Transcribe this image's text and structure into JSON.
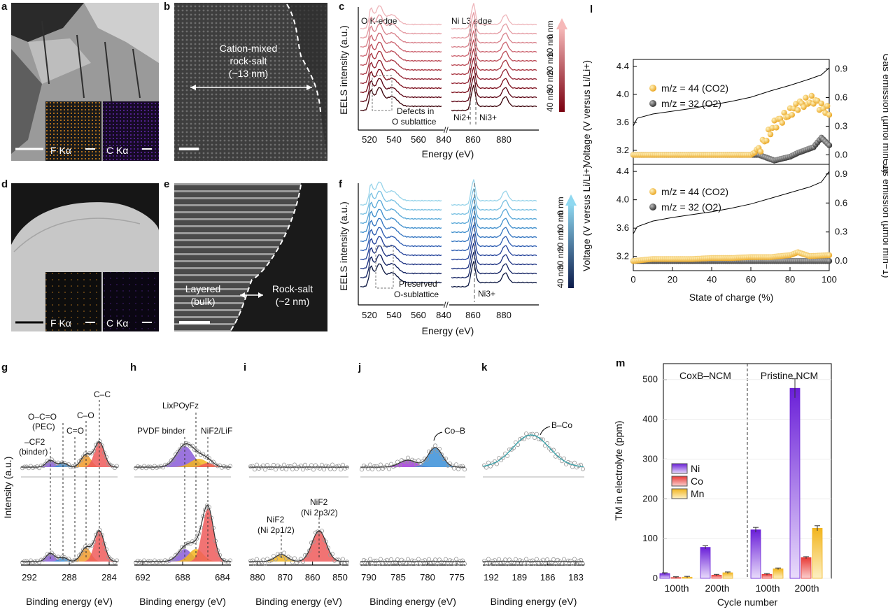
{
  "panels": {
    "a": {
      "label": "a",
      "maps": [
        "F Kα",
        "C Kα"
      ]
    },
    "b": {
      "label": "b",
      "annotation": [
        "Cation-mixed",
        "rock-salt",
        "(~13 nm)"
      ]
    },
    "c": {
      "label": "c",
      "edges": [
        "O K-edge",
        "Ni L3 edge"
      ],
      "depth_labels": [
        "40 nm",
        "30 nm",
        "20 nm",
        "10 nm",
        "0 nm"
      ],
      "notes": [
        "Defects in",
        "O sublattice",
        "Ni2+",
        "Ni3+"
      ]
    },
    "d": {
      "label": "d",
      "maps": [
        "F Kα",
        "C Kα"
      ]
    },
    "e": {
      "label": "e",
      "annotation_left": [
        "Layered",
        "(bulk)"
      ],
      "annotation_right": [
        "Rock-salt",
        "(~2 nm)"
      ]
    },
    "f": {
      "label": "f",
      "depth_labels": [
        "40 nm",
        "30 nm",
        "20 nm",
        "10 nm",
        "0 nm"
      ],
      "notes": [
        "Preserved",
        "O-sublattice",
        "Ni3+"
      ]
    },
    "g": {
      "label": "g",
      "peaks": [
        "C–C",
        "C–O",
        "C=O",
        "O–C=O",
        "(PEC)",
        "–CF2",
        "(binder)"
      ]
    },
    "h": {
      "label": "h",
      "peaks": [
        "PVDF binder",
        "LixPOyFz",
        "NiF2/LiF"
      ]
    },
    "i": {
      "label": "i",
      "peaks": [
        "NiF2",
        "(Ni 2p1/2)",
        "NiF2",
        "(Ni 2p3/2)"
      ]
    },
    "j": {
      "label": "j",
      "peaks": [
        "Co–B"
      ]
    },
    "k": {
      "label": "k",
      "peaks": [
        "B–Co"
      ]
    },
    "l": {
      "label": "l"
    },
    "m": {
      "label": "m"
    }
  },
  "axes": {
    "eels_x": "Energy (eV)",
    "eels_y": "EELS intensity (a.u.)",
    "eels_ticks_left": [
      "520",
      "540",
      "560",
      "840"
    ],
    "eels_ticks_right": [
      "860",
      "880"
    ],
    "xps_x": "Binding energy (eV)",
    "xps_y": "Intensity (a.u.)",
    "g_ticks": [
      "292",
      "288",
      "284"
    ],
    "h_ticks": [
      "692",
      "688",
      "684"
    ],
    "i_ticks": [
      "880",
      "870",
      "860",
      "850"
    ],
    "j_ticks": [
      "790",
      "785",
      "780",
      "775"
    ],
    "k_ticks": [
      "192",
      "189",
      "186",
      "183"
    ]
  },
  "chart_data": [
    {
      "type": "line",
      "panel": "l",
      "xlabel": "State of charge (%)",
      "ylabel_left": "Voltage (V versus Li/Li+)",
      "ylabel_right": "Gas emission (µmol min−1)",
      "xlim": [
        0,
        100
      ],
      "x_ticks": [
        "0",
        "20",
        "40",
        "60",
        "80",
        "100"
      ],
      "ylim_left": [
        3.0,
        4.5
      ],
      "ylim_right": [
        -0.1,
        1.0
      ],
      "left_ticks": [
        "3.2",
        "3.6",
        "4.0",
        "4.4"
      ],
      "right_ticks": [
        "0.0",
        "0.3",
        "0.6",
        "0.9"
      ],
      "legend": [
        "m/z = 44 (CO2)",
        "m/z = 32 (O2)"
      ],
      "subplots": [
        {
          "name": "CoxB–NCM (top)",
          "voltage": {
            "x": [
              0,
              2,
              10,
              20,
              30,
              40,
              50,
              60,
              70,
              80,
              90,
              96,
              100
            ],
            "y": [
              3.55,
              3.66,
              3.72,
              3.76,
              3.8,
              3.85,
              3.9,
              3.96,
              4.05,
              4.13,
              4.22,
              4.28,
              4.38
            ]
          },
          "co2": {
            "x": [
              0,
              10,
              20,
              30,
              40,
              50,
              60,
              64,
              68,
              72,
              76,
              80,
              84,
              88,
              92,
              96,
              100
            ],
            "y": [
              0.0,
              0.0,
              0.0,
              0.0,
              0.0,
              0.0,
              0.0,
              0.05,
              0.18,
              0.32,
              0.38,
              0.44,
              0.52,
              0.55,
              0.58,
              0.5,
              0.45
            ]
          },
          "o2": {
            "x": [
              0,
              10,
              20,
              30,
              40,
              50,
              60,
              64,
              68,
              72,
              76,
              80,
              84,
              88,
              92,
              96,
              100
            ],
            "y": [
              0.0,
              0.0,
              0.0,
              0.0,
              0.0,
              0.0,
              0.0,
              0.0,
              -0.03,
              -0.06,
              -0.04,
              -0.02,
              0.02,
              0.05,
              0.08,
              0.18,
              0.1
            ]
          }
        },
        {
          "name": "Pristine NCM (bottom)",
          "voltage": {
            "x": [
              0,
              2,
              10,
              20,
              30,
              40,
              50,
              60,
              70,
              80,
              90,
              96,
              100
            ],
            "y": [
              3.52,
              3.62,
              3.7,
              3.75,
              3.79,
              3.83,
              3.88,
              3.94,
              4.02,
              4.1,
              4.18,
              4.25,
              4.4
            ]
          },
          "co2": {
            "x": [
              0,
              10,
              20,
              30,
              40,
              50,
              60,
              70,
              80,
              84,
              90,
              100
            ],
            "y": [
              0.0,
              0.02,
              0.02,
              0.02,
              0.03,
              0.03,
              0.04,
              0.04,
              0.06,
              0.09,
              0.05,
              0.06
            ]
          },
          "o2": {
            "x": [
              0,
              10,
              20,
              30,
              40,
              50,
              60,
              70,
              80,
              90,
              100
            ],
            "y": [
              0.0,
              0.0,
              0.0,
              0.0,
              0.0,
              0.0,
              0.0,
              0.0,
              0.0,
              0.0,
              0.0
            ]
          }
        }
      ]
    },
    {
      "type": "bar",
      "panel": "m",
      "title": "",
      "xlabel": "Cycle number",
      "ylabel": "TM in electrolyte (ppm)",
      "ylim": [
        0,
        540
      ],
      "y_ticks": [
        "0",
        "100",
        "200",
        "300",
        "400",
        "500"
      ],
      "groups": [
        "CoxB–NCM",
        "Pristine NCM"
      ],
      "categories": [
        "100th",
        "200th",
        "100th",
        "200th"
      ],
      "series": [
        {
          "name": "Ni",
          "color": "#6a1fd8",
          "values": [
            12,
            78,
            122,
            478
          ]
        },
        {
          "name": "Co",
          "color": "#e83a36",
          "values": [
            2,
            8,
            10,
            52
          ]
        },
        {
          "name": "Mn",
          "color": "#f2b51e",
          "values": [
            3,
            14,
            24,
            126
          ]
        }
      ]
    }
  ]
}
